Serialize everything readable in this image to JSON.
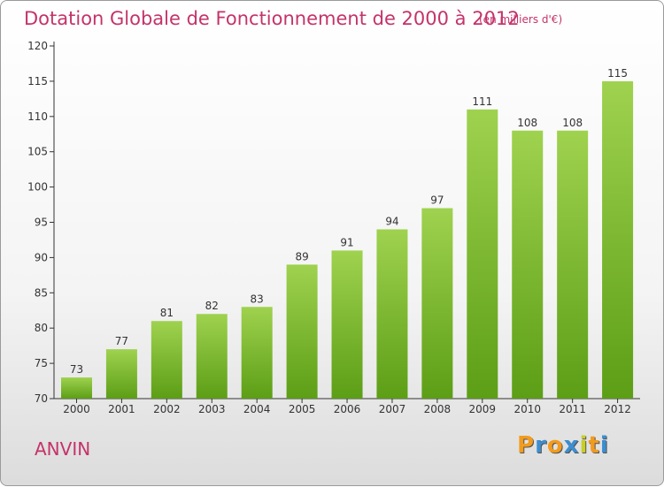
{
  "header": {
    "title": "Dotation Globale de Fonctionnement de 2000 à 2012",
    "subtitle": "(en milliers d'€)"
  },
  "footer": {
    "commune": "ANVIN",
    "logo": "Proxiti"
  },
  "colors": {
    "title": "#c4336a",
    "bar_top": "#9fd24f",
    "bar_bottom": "#5c9e16",
    "logo_letters": [
      "#f29b1d",
      "#3b8ed0",
      "#f29b1d",
      "#3b8ed0",
      "#c9cf25",
      "#f29b1d",
      "#3b8ed0"
    ]
  },
  "chart_data": {
    "type": "bar",
    "categories": [
      "2000",
      "2001",
      "2002",
      "2003",
      "2004",
      "2005",
      "2006",
      "2007",
      "2008",
      "2009",
      "2010",
      "2011",
      "2012"
    ],
    "values": [
      73,
      77,
      81,
      82,
      83,
      89,
      91,
      94,
      97,
      111,
      108,
      108,
      115
    ],
    "ylim": [
      70,
      120
    ],
    "yticks": [
      70,
      75,
      80,
      85,
      90,
      95,
      100,
      105,
      110,
      115,
      120
    ],
    "grid": false,
    "xlabel": "",
    "ylabel": ""
  }
}
